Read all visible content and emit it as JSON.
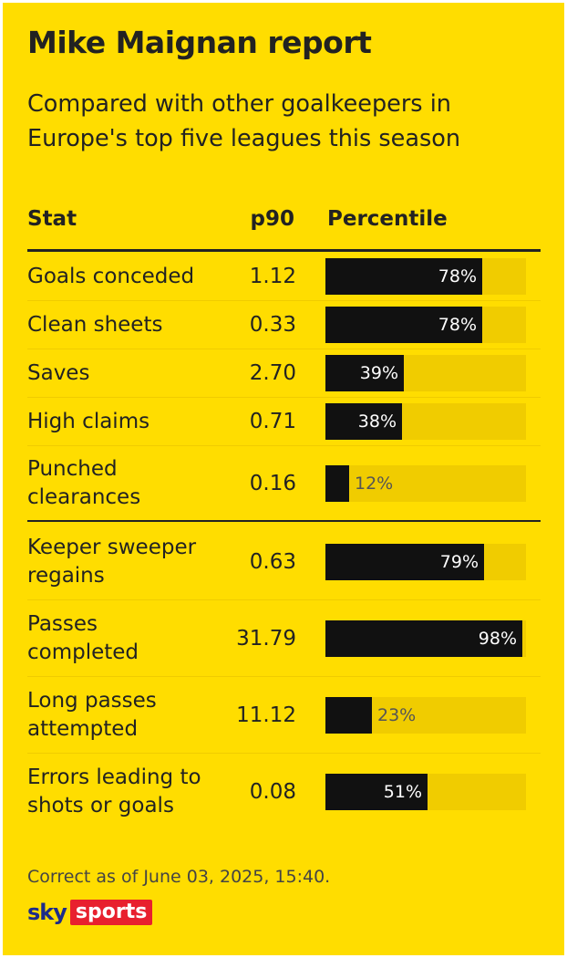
{
  "header": {
    "title": "Mike Maignan report",
    "subtitle": "Compared with other goalkeepers in Europe's top five leagues this season"
  },
  "table": {
    "columns": [
      "Stat",
      "p90",
      "Percentile"
    ]
  },
  "chart_data": {
    "type": "bar",
    "orientation": "horizontal",
    "xlim": [
      0,
      100
    ],
    "categories": [
      "Goals conceded",
      "Clean sheets",
      "Saves",
      "High claims",
      "Punched clearances",
      "Keeper sweeper regains",
      "Passes completed",
      "Long passes attempted",
      "Errors leading to shots or goals"
    ],
    "p90": [
      "1.12",
      "0.33",
      "2.70",
      "0.71",
      "0.16",
      "0.63",
      "31.79",
      "11.12",
      "0.08"
    ],
    "values": [
      78,
      78,
      39,
      38,
      12,
      79,
      98,
      23,
      51
    ],
    "value_labels": [
      "78%",
      "78%",
      "39%",
      "38%",
      "12%",
      "79%",
      "98%",
      "23%",
      "51%"
    ]
  },
  "footer": {
    "note": "Correct as of June 03, 2025, 15:40.",
    "logo_sky": "sky",
    "logo_sports": "sports"
  },
  "colors": {
    "background": "#ffdd00",
    "bar_fill": "#111111",
    "bar_track": "#f0cc00",
    "logo_red": "#e8202e"
  }
}
